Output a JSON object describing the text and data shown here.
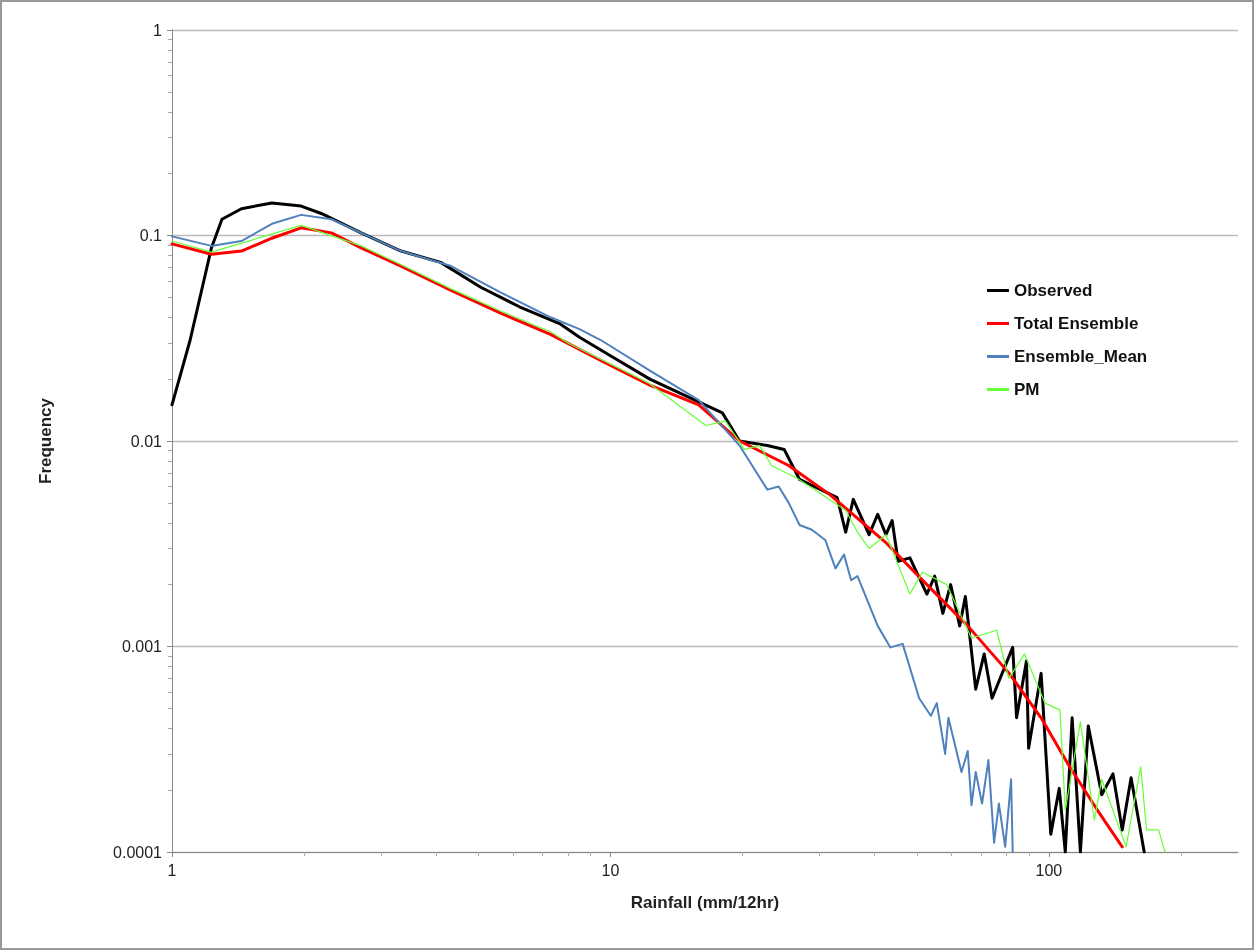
{
  "chart_data": {
    "type": "line",
    "xlabel": "Rainfall (mm/12hr)",
    "ylabel": "Frequency",
    "log": "xy",
    "grid": "y",
    "legend": "right",
    "marker": "none",
    "line_style": "solid",
    "xlim": [
      1,
      270
    ],
    "xticks": [
      1,
      10,
      100,
      {
        "value": 2,
        "label": null
      },
      {
        "value": 3,
        "label": null
      },
      {
        "value": 4,
        "label": null
      },
      {
        "value": 5,
        "label": null
      },
      {
        "value": 6,
        "label": null
      },
      {
        "value": 7,
        "label": null
      },
      {
        "value": 8,
        "label": null
      },
      {
        "value": 9,
        "label": null
      },
      {
        "value": 20,
        "label": null
      },
      {
        "value": 30,
        "label": null
      },
      {
        "value": 40,
        "label": null
      },
      {
        "value": 50,
        "label": null
      },
      {
        "value": 60,
        "label": null
      },
      {
        "value": 70,
        "label": null
      },
      {
        "value": 80,
        "label": null
      },
      {
        "value": 90,
        "label": null
      },
      {
        "value": 200,
        "label": null
      }
    ],
    "ylim": [
      0.0001,
      1
    ],
    "yticks": [
      0.0001,
      0.001,
      0.01,
      0.1,
      1,
      {
        "value": 0.0002,
        "label": null
      },
      {
        "value": 0.0003,
        "label": null
      },
      {
        "value": 0.0004,
        "label": null
      },
      {
        "value": 0.0005,
        "label": null
      },
      {
        "value": 0.0006,
        "label": null
      },
      {
        "value": 0.0007,
        "label": null
      },
      {
        "value": 0.0008,
        "label": null
      },
      {
        "value": 0.0009,
        "label": null
      },
      {
        "value": 0.002,
        "label": null
      },
      {
        "value": 0.003,
        "label": null
      },
      {
        "value": 0.004,
        "label": null
      },
      {
        "value": 0.005,
        "label": null
      },
      {
        "value": 0.006,
        "label": null
      },
      {
        "value": 0.007,
        "label": null
      },
      {
        "value": 0.008,
        "label": null
      },
      {
        "value": 0.009,
        "label": null
      },
      {
        "value": 0.02,
        "label": null
      },
      {
        "value": 0.03,
        "label": null
      },
      {
        "value": 0.04,
        "label": null
      },
      {
        "value": 0.05,
        "label": null
      },
      {
        "value": 0.06,
        "label": null
      },
      {
        "value": 0.07,
        "label": null
      },
      {
        "value": 0.08,
        "label": null
      },
      {
        "value": 0.09,
        "label": null
      },
      {
        "value": 0.2,
        "label": null
      },
      {
        "value": 0.3,
        "label": null
      },
      {
        "value": 0.4,
        "label": null
      },
      {
        "value": 0.5,
        "label": null
      },
      {
        "value": 0.6,
        "label": null
      },
      {
        "value": 0.7,
        "label": null
      },
      {
        "value": 0.8,
        "label": null
      },
      {
        "value": 0.9,
        "label": null
      }
    ],
    "series": [
      {
        "name": "Observed",
        "color": "#000000",
        "x": [
          1,
          1.1,
          1.23,
          1.3,
          1.44,
          1.69,
          1.97,
          2.19,
          2.7,
          3.33,
          4.1,
          5.06,
          6.2,
          7.7,
          8.5,
          10,
          12.3,
          18,
          19.7,
          22.8,
          24.9,
          27,
          32.9,
          34.4,
          35.8,
          38.9,
          40.7,
          42.5,
          43.9,
          45.3,
          48.2,
          52.7,
          54.9,
          57.3,
          59.7,
          62.6,
          64.5,
          68.1,
          71.2,
          74.2,
          82.7,
          84.4,
          88.9,
          89.9,
          96,
          101,
          105.6,
          109,
          113,
          118,
          123,
          132,
          140,
          147,
          154,
          165
        ],
        "values": [
          0.015,
          0.031,
          0.087,
          0.12,
          0.135,
          0.144,
          0.139,
          0.128,
          0.103,
          0.084,
          0.074,
          0.056,
          0.045,
          0.037,
          0.032,
          0.026,
          0.02,
          0.0137,
          0.01,
          0.0095,
          0.0091,
          0.0065,
          0.0053,
          0.0036,
          0.0052,
          0.0035,
          0.0044,
          0.0035,
          0.0041,
          0.0026,
          0.0027,
          0.0018,
          0.0022,
          0.00145,
          0.002,
          0.00126,
          0.00175,
          0.00062,
          0.00092,
          0.00056,
          0.00099,
          0.00045,
          0.00085,
          0.00032,
          0.00074,
          0.000122,
          0.000204,
          0.0001,
          0.00045,
          0.0001,
          0.00041,
          0.00019,
          0.00024,
          0.000128,
          0.00023,
          0.0001
        ]
      },
      {
        "name": "Total Ensemble",
        "color": "#ff0000",
        "x": [
          1,
          1.23,
          1.44,
          1.69,
          1.97,
          2.31,
          2.7,
          3.33,
          4.33,
          5.6,
          7.3,
          9.5,
          12.3,
          15.9,
          19.7,
          25.5,
          31.6,
          42.5,
          52.7,
          65.3,
          81.2,
          96,
          111.5,
          129,
          147
        ],
        "values": [
          0.091,
          0.081,
          0.084,
          0.097,
          0.109,
          0.103,
          0.087,
          0.071,
          0.054,
          0.042,
          0.033,
          0.0247,
          0.0187,
          0.015,
          0.01,
          0.0076,
          0.0055,
          0.0032,
          0.002,
          0.00126,
          0.00074,
          0.00045,
          0.00026,
          0.00016,
          0.000106
        ]
      },
      {
        "name": "Ensemble_Mean",
        "color": "#4f81bd",
        "x": [
          1,
          1.23,
          1.44,
          1.69,
          1.97,
          2.31,
          2.7,
          3.33,
          4.33,
          5.6,
          7.3,
          8.5,
          9.5,
          12.3,
          15.9,
          19.7,
          22.8,
          24.2,
          25.5,
          27,
          28.8,
          30.9,
          32.6,
          34.1,
          35.4,
          36.6,
          40.7,
          43.5,
          46.4,
          50.6,
          53.8,
          55.5,
          58,
          59,
          63.2,
          65.3,
          66.6,
          68.1,
          70.4,
          72.8,
          75,
          76.9,
          79.5,
          82,
          82.7
        ],
        "values": [
          0.099,
          0.089,
          0.094,
          0.114,
          0.126,
          0.12,
          0.103,
          0.084,
          0.071,
          0.053,
          0.04,
          0.035,
          0.031,
          0.022,
          0.0158,
          0.0095,
          0.0058,
          0.006,
          0.005,
          0.0039,
          0.0037,
          0.0033,
          0.0024,
          0.0028,
          0.0021,
          0.0022,
          0.00126,
          0.00099,
          0.00103,
          0.00056,
          0.00046,
          0.00053,
          0.0003,
          0.00045,
          0.000245,
          0.00031,
          0.000169,
          0.000245,
          0.000172,
          0.00028,
          0.000111,
          0.000172,
          0.000106,
          0.000226,
          0.0001
        ]
      },
      {
        "name": "PM",
        "color": "#66ff33",
        "x": [
          1,
          1.23,
          1.97,
          2.7,
          3.33,
          4.33,
          5.6,
          7.3,
          8,
          9.5,
          12.3,
          16.5,
          18.3,
          20.2,
          21.9,
          23.3,
          26.6,
          30.3,
          34.4,
          36.6,
          38.9,
          42.5,
          48.2,
          51.5,
          58.5,
          66.6,
          76,
          81,
          88,
          98,
          106,
          109,
          118,
          127,
          132,
          150,
          162,
          167,
          178,
          184
        ],
        "values": [
          0.094,
          0.083,
          0.112,
          0.089,
          0.072,
          0.055,
          0.043,
          0.034,
          0.03,
          0.025,
          0.019,
          0.0119,
          0.0125,
          0.0091,
          0.0095,
          0.0076,
          0.0066,
          0.0055,
          0.0046,
          0.0036,
          0.003,
          0.0035,
          0.0018,
          0.0023,
          0.002,
          0.0011,
          0.0012,
          0.0007,
          0.00092,
          0.00053,
          0.00049,
          0.00016,
          0.00043,
          0.000143,
          0.000226,
          0.000106,
          0.00026,
          0.000128,
          0.000128,
          0.0001
        ]
      }
    ]
  }
}
